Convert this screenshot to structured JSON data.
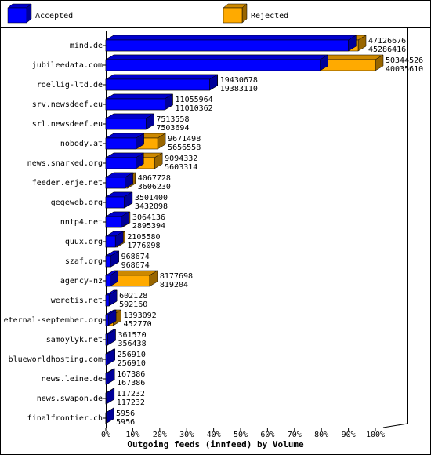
{
  "chart_data": {
    "type": "bar3d-overlap",
    "xlabel": "Outgoing feeds (innfeed) by Volume",
    "legend": [
      {
        "name": "Accepted",
        "color": "#0000ff"
      },
      {
        "name": "Rejected",
        "color": "#ffaa00"
      }
    ],
    "categories": [
      "mind.de",
      "jubileedata.com",
      "roellig-ltd.de",
      "srv.newsdeef.eu",
      "srl.newsdeef.eu",
      "nobody.at",
      "news.snarked.org",
      "feeder.erje.net",
      "gegeweb.org",
      "nntp4.net",
      "quux.org",
      "szaf.org",
      "agency-nz",
      "weretis.net",
      "eternal-september.org",
      "samoylyk.net",
      "blueworldhosting.com",
      "news.leine.de",
      "news.swapon.de",
      "finalfrontier.ch"
    ],
    "totals": [
      47126676,
      50344526,
      19430678,
      11055964,
      7513558,
      9671498,
      9094332,
      4067728,
      3501400,
      3064136,
      2105580,
      968674,
      8177698,
      602128,
      1393092,
      361570,
      256910,
      167386,
      117232,
      5956
    ],
    "accepted": [
      45286416,
      40035610,
      19383110,
      11010362,
      7503694,
      5656558,
      5603314,
      3606230,
      3432098,
      2895394,
      1776098,
      968674,
      819204,
      592160,
      452770,
      356438,
      256910,
      167386,
      117232,
      5956
    ],
    "xlim": [
      0,
      100
    ],
    "xticks": [
      {
        "value": 0,
        "label": "0%"
      },
      {
        "value": 10,
        "label": "10%"
      },
      {
        "value": 20,
        "label": "20%"
      },
      {
        "value": 30,
        "label": "30%"
      },
      {
        "value": 40,
        "label": "40%"
      },
      {
        "value": 50,
        "label": "50%"
      },
      {
        "value": 60,
        "label": "60%"
      },
      {
        "value": 70,
        "label": "70%"
      },
      {
        "value": 80,
        "label": "80%"
      },
      {
        "value": 90,
        "label": "90%"
      },
      {
        "value": 100,
        "label": "100%"
      }
    ]
  }
}
